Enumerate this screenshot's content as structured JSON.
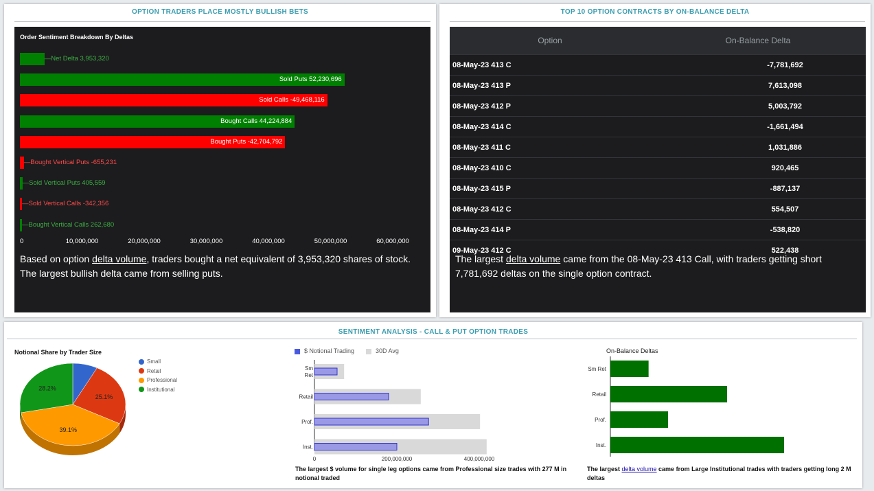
{
  "panel1": {
    "title": "OPTION TRADERS PLACE MOSTLY BULLISH BETS",
    "chart_title": "Order Sentiment Breakdown By Deltas",
    "description_before": "Based on option ",
    "description_link": "delta volume",
    "description_after": ", traders bought a net equivalent of 3,953,320 shares of stock. The largest bullish delta came from selling puts."
  },
  "panel2": {
    "title": "TOP 10 OPTION CONTRACTS BY ON-BALANCE DELTA",
    "col_option": "Option",
    "col_delta": "On-Balance Delta",
    "rows": [
      {
        "option": "08-May-23 413 C",
        "delta": "-7,781,692"
      },
      {
        "option": "08-May-23 413 P",
        "delta": "7,613,098"
      },
      {
        "option": "08-May-23 412 P",
        "delta": "5,003,792"
      },
      {
        "option": "08-May-23 414 C",
        "delta": "-1,661,494"
      },
      {
        "option": "08-May-23 411 C",
        "delta": "1,031,886"
      },
      {
        "option": "08-May-23 410 C",
        "delta": "920,465"
      },
      {
        "option": "08-May-23 415 P",
        "delta": "-887,137"
      },
      {
        "option": "08-May-23 412 C",
        "delta": "554,507"
      },
      {
        "option": "08-May-23 414 P",
        "delta": "-538,820"
      },
      {
        "option": "09-May-23 412 C",
        "delta": "522,438"
      }
    ],
    "description_before": "The largest ",
    "description_link": "delta volume",
    "description_after": " came from the 08-May-23 413 Call, with traders getting short 7,781,692 deltas on the single option contract."
  },
  "panel3": {
    "title": "SENTIMENT ANALYSIS - CALL & PUT OPTION TRADES",
    "pie_title": "Notional Share by Trader Size",
    "notional_legend": [
      "$ Notional Trading",
      "30D Avg"
    ],
    "notional_caption": "The largest $ volume for single leg options came from Professional size trades with 277 M in notional traded",
    "obd_title": "On-Balance Deltas",
    "obd_caption_before": "The largest ",
    "obd_caption_link": "delta volume",
    "obd_caption_after": " came from Large Institutional trades with traders getting long 2 M deltas"
  },
  "colors": {
    "accent": "#3a9db0",
    "green": "#008000",
    "red": "#ff0000",
    "dark_bg": "#1c1c1e"
  },
  "chart_data": [
    {
      "type": "bar",
      "title": "Order Sentiment Breakdown By Deltas",
      "orientation": "horizontal",
      "xlim": [
        0,
        60000000
      ],
      "xticks": [
        "0",
        "10,000,000",
        "20,000,000",
        "30,000,000",
        "40,000,000",
        "50,000,000",
        "60,000,000"
      ],
      "bars": [
        {
          "label": "Net Delta 3,953,320",
          "value": 3953320,
          "color": "#008000",
          "label_color": "#3cb043"
        },
        {
          "label": "Sold Puts 52,230,696",
          "value": 52230696,
          "color": "#008000",
          "label_color": "#ffffff"
        },
        {
          "label": "Sold Calls -49,468,116",
          "value": 49468116,
          "color": "#ff0000",
          "label_color": "#ffffff"
        },
        {
          "label": "Bought Calls 44,224,884",
          "value": 44224884,
          "color": "#008000",
          "label_color": "#ffffff"
        },
        {
          "label": "Bought Puts -42,704,792",
          "value": 42704792,
          "color": "#ff0000",
          "label_color": "#ffffff"
        },
        {
          "label": "Bought Vertical Puts -655,231",
          "value": 655231,
          "color": "#ff0000",
          "label_color": "#ff4a4a"
        },
        {
          "label": "Sold Vertical Puts 405,559",
          "value": 405559,
          "color": "#008000",
          "label_color": "#3cb043"
        },
        {
          "label": "Sold Vertical Calls -342,356",
          "value": 342356,
          "color": "#ff0000",
          "label_color": "#ff4a4a"
        },
        {
          "label": "Bought Vertical Calls 262,680",
          "value": 262680,
          "color": "#008000",
          "label_color": "#3cb043"
        }
      ]
    },
    {
      "type": "pie",
      "title": "Notional Share by Trader Size",
      "legend": "right",
      "slices": [
        {
          "name": "Small",
          "value": 7.6,
          "color": "#3366cc"
        },
        {
          "name": "Retail",
          "value": 25.1,
          "color": "#dc3912",
          "label": "25.1%"
        },
        {
          "name": "Professional",
          "value": 39.1,
          "color": "#ff9900",
          "label": "39.1%"
        },
        {
          "name": "Institutional",
          "value": 28.2,
          "color": "#109618",
          "label": "28.2%"
        }
      ]
    },
    {
      "type": "bar",
      "orientation": "horizontal",
      "categories": [
        "Sm Ret",
        "Retail",
        "Prof.",
        "Inst."
      ],
      "xlim": [
        0,
        460000000
      ],
      "xticks": [
        "0",
        "200,000,000",
        "400,000,000"
      ],
      "series": [
        {
          "name": "$ Notional Trading",
          "values": [
            55000000,
            180000000,
            277000000,
            200000000
          ],
          "color": "#9999e6"
        },
        {
          "name": "30D Avg",
          "values": [
            72000000,
            258000000,
            402000000,
            418000000
          ],
          "color": "#d9d9d9"
        }
      ],
      "legend": "top"
    },
    {
      "type": "bar",
      "title": "On-Balance Deltas",
      "orientation": "horizontal",
      "categories": [
        "Sm Ret",
        "Retail",
        "Prof.",
        "Inst."
      ],
      "values": [
        0.55,
        1.68,
        0.83,
        2.5
      ],
      "color": "#007000"
    }
  ]
}
